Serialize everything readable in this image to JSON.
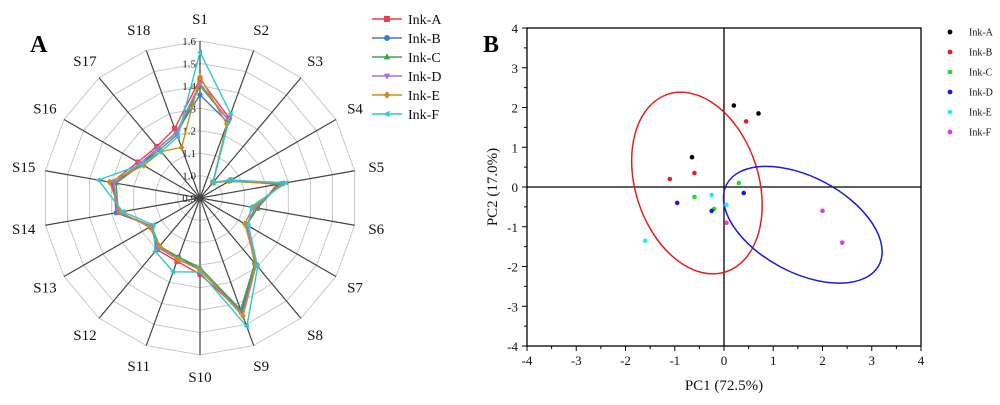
{
  "panels": {
    "a_label": "A",
    "b_label": "B"
  },
  "chart_data": [
    {
      "type": "radar",
      "panel": "A",
      "axes": [
        "S1",
        "S2",
        "S3",
        "S4",
        "S5",
        "S6",
        "S7",
        "S8",
        "S9",
        "S10",
        "S11",
        "S12",
        "S13",
        "S14",
        "S15",
        "S16",
        "S17",
        "S18"
      ],
      "rlim": [
        0.9,
        1.6
      ],
      "rticks": [
        "0.9",
        "1.0",
        "1.1",
        "1.2",
        "1.3",
        "1.4",
        "1.5",
        "1.6"
      ],
      "grid": true,
      "legend_position": "right",
      "series": [
        {
          "name": "Ink-A",
          "color": "#e8424c",
          "marker": "square",
          "values": [
            1.43,
            1.28,
            0.99,
            1.06,
            1.25,
            1.16,
            1.14,
            1.29,
            1.44,
            1.24,
            1.2,
            1.2,
            1.15,
            1.27,
            1.3,
            1.22,
            1.2,
            1.23
          ]
        },
        {
          "name": "Ink-B",
          "color": "#3f78d2",
          "marker": "circle",
          "values": [
            1.36,
            1.26,
            0.99,
            1.06,
            1.27,
            1.15,
            1.14,
            1.28,
            1.44,
            1.22,
            1.18,
            1.19,
            1.15,
            1.28,
            1.29,
            1.2,
            1.19,
            1.21
          ]
        },
        {
          "name": "Ink-C",
          "color": "#3aa84a",
          "marker": "triangle-up",
          "values": [
            1.4,
            1.27,
            0.99,
            1.05,
            1.26,
            1.16,
            1.14,
            1.28,
            1.43,
            1.21,
            1.18,
            1.18,
            1.15,
            1.27,
            1.28,
            1.2,
            1.18,
            1.2
          ]
        },
        {
          "name": "Ink-D",
          "color": "#b06ed6",
          "marker": "triangle-down",
          "values": [
            1.41,
            1.27,
            0.99,
            1.05,
            1.27,
            1.15,
            1.14,
            1.29,
            1.45,
            1.22,
            1.19,
            1.19,
            1.15,
            1.27,
            1.29,
            1.21,
            1.19,
            1.21
          ]
        },
        {
          "name": "Ink-E",
          "color": "#c7901a",
          "marker": "diamond",
          "values": [
            1.44,
            1.25,
            0.99,
            1.05,
            1.28,
            1.14,
            1.13,
            1.29,
            1.46,
            1.22,
            1.19,
            1.18,
            1.16,
            1.26,
            1.31,
            1.19,
            1.17,
            1.14
          ]
        },
        {
          "name": "Ink-F",
          "color": "#2fc7cf",
          "marker": "triangle-left",
          "values": [
            1.55,
            1.3,
            0.99,
            1.06,
            1.29,
            1.13,
            1.15,
            1.3,
            1.51,
            1.23,
            1.25,
            1.21,
            1.14,
            1.25,
            1.36,
            1.2,
            1.17,
            1.19
          ]
        }
      ]
    },
    {
      "type": "scatter",
      "panel": "B",
      "xlabel": "PC1 (72.5%)",
      "ylabel": "PC2 (17.0%)",
      "xlim": [
        -4,
        4
      ],
      "ylim": [
        -4,
        4
      ],
      "xticks": [
        "-4",
        "-3",
        "-2",
        "-1",
        "0",
        "1",
        "2",
        "3",
        "4"
      ],
      "yticks": [
        "-4",
        "-3",
        "-2",
        "-1",
        "0",
        "1",
        "2",
        "3",
        "4"
      ],
      "grid": false,
      "legend_position": "right",
      "series": [
        {
          "name": "Ink-A",
          "color": "#000000",
          "points": [
            [
              0.2,
              2.05
            ],
            [
              0.7,
              1.85
            ],
            [
              -0.65,
              0.75
            ]
          ]
        },
        {
          "name": "Ink-B",
          "color": "#e02020",
          "points": [
            [
              0.45,
              1.65
            ],
            [
              -1.1,
              0.2
            ],
            [
              -0.6,
              0.35
            ]
          ]
        },
        {
          "name": "Ink-C",
          "color": "#22dd22",
          "points": [
            [
              0.3,
              0.1
            ],
            [
              -0.6,
              -0.25
            ],
            [
              -0.2,
              -0.55
            ]
          ]
        },
        {
          "name": "Ink-D",
          "color": "#1a1adf",
          "points": [
            [
              0.4,
              -0.15
            ],
            [
              -0.95,
              -0.4
            ],
            [
              -0.25,
              -0.6
            ]
          ]
        },
        {
          "name": "Ink-E",
          "color": "#30e6f0",
          "points": [
            [
              -1.6,
              -1.35
            ],
            [
              -0.25,
              -0.2
            ],
            [
              0.05,
              -0.45
            ]
          ]
        },
        {
          "name": "Ink-F",
          "color": "#ee30ee",
          "points": [
            [
              2.0,
              -0.6
            ],
            [
              2.4,
              -1.4
            ],
            [
              0.05,
              -0.9
            ]
          ]
        }
      ],
      "ellipses": [
        {
          "color": "#e02020",
          "center": [
            -0.55,
            0.1
          ],
          "semi_axes": [
            1.25,
            2.35
          ],
          "rotation_deg": -18
        },
        {
          "color": "#1a1adf",
          "center": [
            1.6,
            -0.95
          ],
          "semi_axes": [
            1.75,
            1.2
          ],
          "rotation_deg": 28
        }
      ]
    }
  ]
}
